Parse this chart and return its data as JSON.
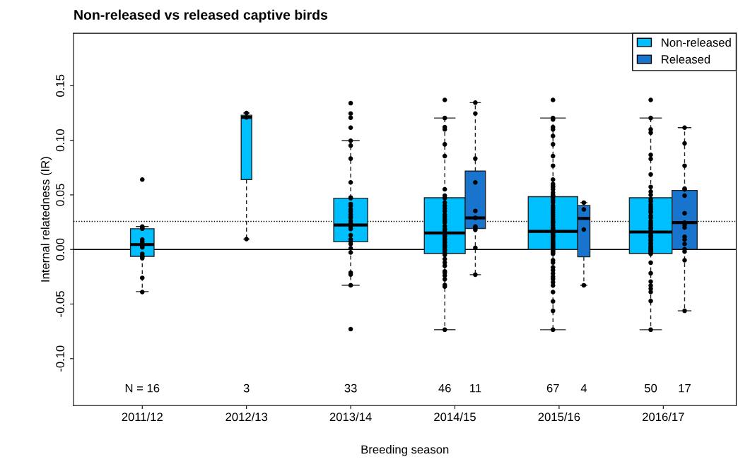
{
  "chart_data": {
    "type": "box",
    "title": "Non-released vs released captive birds",
    "xlabel": "Breeding season",
    "ylabel": "Internal relatedness (IR)",
    "categories": [
      "2011/12",
      "2012/13",
      "2013/14",
      "2014/15",
      "2015/16",
      "2016/17"
    ],
    "ylim": [
      -0.143,
      0.198
    ],
    "yticks": [
      {
        "value": -0.1,
        "label": "-0.10"
      },
      {
        "value": -0.05,
        "label": "-0.05"
      },
      {
        "value": 0,
        "label": "0.00"
      },
      {
        "value": 0.05,
        "label": "0.05"
      },
      {
        "value": 0.1,
        "label": "0.10"
      },
      {
        "value": 0.15,
        "label": "0.15"
      }
    ],
    "series": [
      {
        "name": "Non-released",
        "color": "#00bfff",
        "boxes": [
          {
            "low": -0.0386,
            "q1": -0.0063,
            "median": 0.0045,
            "q3": 0.019,
            "high": 0.021
          },
          {
            "low": 0.0095,
            "q1": 0.064,
            "median": 0.121,
            "q3": 0.123,
            "high": 0.125
          },
          {
            "low": -0.0328,
            "q1": 0.007,
            "median": 0.0224,
            "q3": 0.047,
            "high": 0.0996
          },
          {
            "low": -0.0735,
            "q1": -0.0037,
            "median": 0.0151,
            "q3": 0.0474,
            "high": 0.1204
          },
          {
            "low": -0.0735,
            "q1": 0.0,
            "median": 0.0166,
            "q3": 0.0483,
            "high": 0.1204
          },
          {
            "low": -0.0735,
            "q1": -0.0037,
            "median": 0.016,
            "q3": 0.0474,
            "high": 0.1204
          }
        ]
      },
      {
        "name": "Released",
        "color": "#1874cd",
        "boxes": [
          null,
          null,
          null,
          {
            "low": -0.0231,
            "q1": 0.0192,
            "median": 0.0289,
            "q3": 0.0718,
            "high": 0.1345
          },
          {
            "low": -0.0328,
            "q1": -0.0067,
            "median": 0.0284,
            "q3": 0.0403,
            "high": 0.0429
          },
          {
            "low": -0.0562,
            "q1": 0.0002,
            "median": 0.0246,
            "q3": 0.0541,
            "high": 0.1116
          }
        ]
      },
      {
        "type": "scatter",
        "color": "#000000",
        "x": [
          "2011/12",
          "2011/12",
          "2011/12",
          "2011/12",
          "2011/12",
          "2011/12",
          "2011/12",
          "2011/12",
          "2011/12",
          "2011/12",
          "2011/12",
          "2011/12",
          "2011/12",
          "2011/12",
          "2011/12",
          "2012/13",
          "2012/13",
          "2012/13",
          "2013/14",
          "2013/14",
          "2013/14",
          "2013/14",
          "2013/14",
          "2013/14",
          "2013/14",
          "2013/14",
          "2013/14",
          "2013/14",
          "2013/14",
          "2013/14",
          "2013/14",
          "2013/14",
          "2013/14",
          "2013/14",
          "2013/14",
          "2013/14",
          "2013/14",
          "2013/14",
          "2013/14",
          "2013/14",
          "2013/14",
          "2013/14",
          "2013/14",
          "2013/14",
          "2013/14",
          "2013/14",
          "2013/14",
          "2013/14",
          "2013/14",
          "2014/15",
          "2014/15",
          "2014/15",
          "2014/15",
          "2014/15",
          "2014/15",
          "2014/15",
          "2014/15",
          "2014/15",
          "2014/15",
          "2014/15",
          "2014/15",
          "2014/15",
          "2014/15",
          "2014/15",
          "2014/15",
          "2014/15",
          "2014/15",
          "2014/15",
          "2014/15",
          "2014/15",
          "2014/15",
          "2014/15",
          "2014/15",
          "2014/15",
          "2014/15",
          "2014/15",
          "2014/15",
          "2014/15",
          "2014/15",
          "2014/15",
          "2014/15",
          "2014/15",
          "2014/15",
          "2014/15",
          "2014/15",
          "2014/15",
          "2014/15",
          "2014/15",
          "2014/15",
          "2014/15",
          "2014/15",
          "2014/15",
          "2014/15",
          "2014/15",
          "2015/16",
          "2015/16",
          "2015/16",
          "2015/16",
          "2015/16",
          "2015/16",
          "2015/16",
          "2015/16",
          "2015/16",
          "2015/16",
          "2015/16",
          "2015/16",
          "2015/16",
          "2015/16",
          "2015/16",
          "2015/16",
          "2015/16",
          "2015/16",
          "2015/16",
          "2015/16",
          "2015/16",
          "2015/16",
          "2015/16",
          "2015/16",
          "2015/16",
          "2015/16",
          "2015/16",
          "2015/16",
          "2015/16",
          "2015/16",
          "2015/16",
          "2015/16",
          "2015/16",
          "2015/16",
          "2015/16",
          "2015/16",
          "2015/16",
          "2015/16",
          "2015/16",
          "2015/16",
          "2015/16",
          "2015/16",
          "2015/16",
          "2015/16",
          "2015/16",
          "2015/16",
          "2015/16",
          "2015/16",
          "2015/16",
          "2015/16",
          "2015/16",
          "2015/16",
          "2015/16",
          "2015/16",
          "2015/16",
          "2015/16",
          "2015/16",
          "2015/16",
          "2015/16",
          "2015/16",
          "2015/16",
          "2015/16",
          "2015/16",
          "2015/16",
          "2015/16",
          "2015/16",
          "2016/17",
          "2016/17",
          "2016/17",
          "2016/17",
          "2016/17",
          "2016/17",
          "2016/17",
          "2016/17",
          "2016/17",
          "2016/17",
          "2016/17",
          "2016/17",
          "2016/17",
          "2016/17",
          "2016/17",
          "2016/17",
          "2016/17",
          "2016/17",
          "2016/17",
          "2016/17",
          "2016/17",
          "2016/17",
          "2016/17",
          "2016/17",
          "2016/17",
          "2016/17",
          "2016/17",
          "2016/17",
          "2016/17",
          "2016/17",
          "2016/17",
          "2016/17",
          "2016/17",
          "2016/17",
          "2016/17",
          "2016/17",
          "2016/17",
          "2016/17",
          "2016/17",
          "2016/17",
          "2016/17",
          "2016/17",
          "2016/17",
          "2016/17",
          "2016/17",
          "2016/17",
          "2016/17",
          "2016/17",
          "2016/17"
        ],
        "values": [
          0.064,
          0.021,
          0.02,
          0.019,
          0.009,
          0.007,
          0.005,
          0.003,
          0.002,
          -0.004,
          -0.006,
          -0.007,
          -0.008,
          -0.026,
          -0.039,
          0.125,
          0.121,
          0.0095,
          0.134,
          0.1245,
          0.1207,
          0.1116,
          0.0996,
          0.0952,
          0.0832,
          0.0614,
          0.0476,
          0.0416,
          0.0368,
          0.0347,
          0.0321,
          0.029,
          0.0209,
          0.0187,
          0.0092,
          0.0075,
          0.0011,
          -0.0028,
          -0.0213,
          -0.023,
          -0.0328,
          -0.073,
          0.047,
          0.04,
          0.03,
          0.026,
          0.024,
          0.013,
          0.005,
          0.137,
          0.1204,
          0.112,
          0.11,
          0.0963,
          0.0855,
          0.0551,
          0.0493,
          0.047,
          0.0375,
          0.035,
          0.032,
          0.0246,
          0.0214,
          0.019,
          0.012,
          0.0089,
          0.006,
          0.003,
          0.0,
          -0.003,
          -0.0088,
          -0.012,
          -0.0213,
          -0.024,
          -0.0273,
          -0.0325,
          -0.034,
          -0.0735,
          0.043,
          0.04,
          0.03,
          0.028,
          0.026,
          0.018,
          0.016,
          0.013,
          0.01,
          0.007,
          0.004,
          0.002,
          -0.001,
          -0.005,
          -0.015,
          -0.02,
          0.137,
          0.1204,
          0.112,
          0.104,
          0.0963,
          0.0855,
          0.0767,
          0.06,
          0.057,
          0.055,
          0.052,
          0.049,
          0.047,
          0.036,
          0.034,
          0.032,
          0.03,
          0.025,
          0.022,
          0.019,
          0.015,
          0.012,
          0.0095,
          0.006,
          0.004,
          0.002,
          0.0,
          -0.002,
          -0.004,
          -0.0099,
          -0.0164,
          -0.022,
          -0.027,
          -0.03,
          -0.033,
          -0.039,
          -0.0476,
          -0.0562,
          -0.0735,
          0.119,
          0.11,
          0.064,
          0.058,
          0.05,
          0.045,
          0.043,
          0.04,
          0.038,
          0.028,
          0.026,
          0.024,
          0.02,
          0.018,
          0.014,
          0.013,
          0.011,
          0.008,
          0.007,
          0.005,
          0.003,
          0.001,
          -0.001,
          -0.003,
          -0.012,
          -0.019,
          -0.025,
          0.137,
          0.1204,
          0.11,
          0.107,
          0.0867,
          0.083,
          0.0687,
          0.0573,
          0.053,
          0.05,
          0.046,
          0.037,
          0.034,
          0.031,
          0.026,
          0.022,
          0.019,
          0.013,
          0.011,
          0.008,
          0.005,
          0.003,
          0.001,
          -0.002,
          -0.004,
          -0.0121,
          -0.0218,
          -0.0295,
          -0.033,
          -0.036,
          -0.039,
          -0.0472,
          -0.0735,
          0.044,
          0.041,
          0.039,
          0.035,
          0.029,
          0.024,
          0.02,
          0.017,
          0.015,
          0.012,
          0.009,
          0.006,
          0.002,
          0.0,
          -0.001,
          -0.003
        ]
      },
      {
        "type": "scatter",
        "color": "#000000",
        "x": [
          "2014/15",
          "2014/15",
          "2014/15",
          "2014/15",
          "2014/15",
          "2014/15",
          "2014/15",
          "2014/15",
          "2014/15",
          "2014/15",
          "2014/15",
          "2015/16",
          "2015/16",
          "2015/16",
          "2015/16",
          "2016/17",
          "2016/17",
          "2016/17",
          "2016/17",
          "2016/17",
          "2016/17",
          "2016/17",
          "2016/17",
          "2016/17",
          "2016/17",
          "2016/17",
          "2016/17",
          "2016/17",
          "2016/17",
          "2016/17",
          "2016/17",
          "2016/17"
        ],
        "values": [
          0.1345,
          0.1245,
          0.0832,
          0.0614,
          0.0353,
          0.029,
          0.021,
          0.02,
          0.018,
          0.0015,
          -0.0231,
          0.0429,
          0.0367,
          0.0183,
          -0.0328,
          0.1116,
          0.0972,
          0.0767,
          0.0558,
          0.055,
          0.0493,
          0.0332,
          0.0246,
          0.0224,
          0.02,
          0.0116,
          0.009,
          0.005,
          0.0002,
          -0.002,
          -0.0099,
          -0.0562
        ]
      }
    ],
    "ref_lines": [
      {
        "axis": "y",
        "value": 0,
        "color": "#000000",
        "line_style": "solid"
      },
      {
        "axis": "y",
        "value": 0.0257,
        "color": "#000000",
        "line_style": "dotted"
      }
    ],
    "annotations": [
      "N = 16",
      "3",
      "33",
      "46",
      "11",
      "67",
      "4",
      "50",
      "17"
    ],
    "legend": "top right",
    "grid": false,
    "marker": "circle"
  }
}
